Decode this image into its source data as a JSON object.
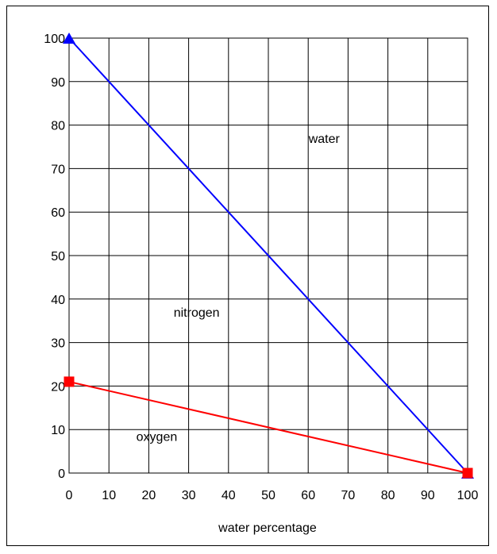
{
  "chart_data": {
    "type": "line",
    "title": "",
    "xlabel": "water percentage",
    "ylabel": "",
    "xlim": [
      0,
      100
    ],
    "ylim": [
      0,
      100
    ],
    "xticks": [
      0,
      10,
      20,
      30,
      40,
      50,
      60,
      70,
      80,
      90,
      100
    ],
    "yticks": [
      0,
      10,
      20,
      30,
      40,
      50,
      60,
      70,
      80,
      90,
      100
    ],
    "grid": true,
    "legend": "none",
    "series": [
      {
        "color": "#0000ff",
        "marker": "triangle",
        "points": [
          [
            0,
            100
          ],
          [
            100,
            0
          ]
        ]
      },
      {
        "color": "#ff0000",
        "marker": "square",
        "points": [
          [
            0,
            21
          ],
          [
            100,
            0
          ]
        ]
      }
    ],
    "annotations": [
      {
        "text": "water",
        "x": 64,
        "y": 77
      },
      {
        "text": "nitrogen",
        "x": 32,
        "y": 37
      },
      {
        "text": "oxygen",
        "x": 22,
        "y": 8.5
      }
    ]
  }
}
